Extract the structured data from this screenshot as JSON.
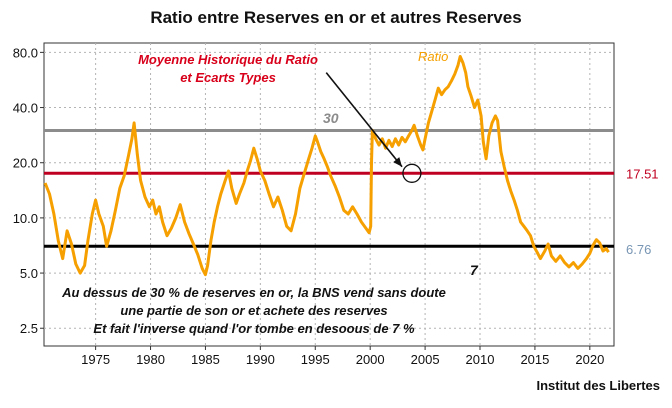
{
  "title": "Ratio entre Reserves en or et autres Reserves",
  "source": "Institut des Libertes",
  "chart_data": {
    "type": "line",
    "scale_y": "log",
    "ylim": [
      2.0,
      90.0
    ],
    "xlim": [
      1970.3,
      2022.2
    ],
    "y_ticks": [
      {
        "value": 2.5,
        "label": "2.5"
      },
      {
        "value": 5,
        "label": "5.0"
      },
      {
        "value": 10,
        "label": "10.0"
      },
      {
        "value": 20,
        "label": "20.0"
      },
      {
        "value": 40,
        "label": "40.0"
      },
      {
        "value": 80,
        "label": "80.0"
      }
    ],
    "x_ticks": [
      1975,
      1980,
      1985,
      1990,
      1995,
      2000,
      2005,
      2010,
      2015,
      2020
    ],
    "grid": true,
    "series": [
      {
        "name": "Ratio",
        "color": "#f5a000",
        "points": [
          [
            1970.4,
            15.5
          ],
          [
            1970.8,
            13.5
          ],
          [
            1971.2,
            10.5
          ],
          [
            1971.6,
            7.5
          ],
          [
            1972.0,
            6.0
          ],
          [
            1972.4,
            8.5
          ],
          [
            1972.8,
            7.2
          ],
          [
            1973.2,
            5.6
          ],
          [
            1973.6,
            5.0
          ],
          [
            1974.0,
            5.5
          ],
          [
            1974.3,
            7.5
          ],
          [
            1974.7,
            10.5
          ],
          [
            1975.0,
            12.5
          ],
          [
            1975.3,
            10.5
          ],
          [
            1975.7,
            9.0
          ],
          [
            1976.0,
            7.0
          ],
          [
            1976.4,
            8.5
          ],
          [
            1976.8,
            11.0
          ],
          [
            1977.2,
            14.5
          ],
          [
            1977.6,
            17.0
          ],
          [
            1978.0,
            22.0
          ],
          [
            1978.3,
            27.0
          ],
          [
            1978.5,
            33.0
          ],
          [
            1978.8,
            22.0
          ],
          [
            1979.1,
            16.0
          ],
          [
            1979.5,
            13.0
          ],
          [
            1979.9,
            11.5
          ],
          [
            1980.2,
            12.5
          ],
          [
            1980.5,
            10.5
          ],
          [
            1980.8,
            11.5
          ],
          [
            1981.1,
            9.5
          ],
          [
            1981.5,
            8.0
          ],
          [
            1981.9,
            8.8
          ],
          [
            1982.3,
            10.0
          ],
          [
            1982.7,
            11.8
          ],
          [
            1983.1,
            9.5
          ],
          [
            1983.5,
            8.2
          ],
          [
            1983.9,
            7.2
          ],
          [
            1984.3,
            6.3
          ],
          [
            1984.7,
            5.3
          ],
          [
            1985.0,
            4.9
          ],
          [
            1985.2,
            5.5
          ],
          [
            1985.5,
            7.5
          ],
          [
            1985.8,
            9.5
          ],
          [
            1986.1,
            11.5
          ],
          [
            1986.4,
            13.5
          ],
          [
            1986.8,
            16.0
          ],
          [
            1987.1,
            18.0
          ],
          [
            1987.4,
            14.5
          ],
          [
            1987.8,
            12.0
          ],
          [
            1988.1,
            13.5
          ],
          [
            1988.5,
            15.5
          ],
          [
            1988.8,
            18.0
          ],
          [
            1989.1,
            20.5
          ],
          [
            1989.4,
            24.0
          ],
          [
            1989.7,
            21.0
          ],
          [
            1990.0,
            18.0
          ],
          [
            1990.4,
            16.0
          ],
          [
            1990.8,
            13.5
          ],
          [
            1991.2,
            11.5
          ],
          [
            1991.6,
            13.0
          ],
          [
            1992.0,
            11.0
          ],
          [
            1992.4,
            9.0
          ],
          [
            1992.8,
            8.5
          ],
          [
            1993.2,
            10.5
          ],
          [
            1993.6,
            14.5
          ],
          [
            1994.0,
            17.5
          ],
          [
            1994.4,
            21.0
          ],
          [
            1994.7,
            24.0
          ],
          [
            1995.0,
            28.0
          ],
          [
            1995.2,
            26.0
          ],
          [
            1995.5,
            23.0
          ],
          [
            1995.8,
            21.0
          ],
          [
            1996.1,
            19.0
          ],
          [
            1996.4,
            17.0
          ],
          [
            1996.8,
            15.0
          ],
          [
            1997.2,
            13.0
          ],
          [
            1997.6,
            11.0
          ],
          [
            1998.0,
            10.5
          ],
          [
            1998.4,
            11.5
          ],
          [
            1998.8,
            10.5
          ],
          [
            1999.2,
            9.5
          ],
          [
            1999.6,
            8.8
          ],
          [
            1999.9,
            8.3
          ],
          [
            2000.05,
            9.0
          ],
          [
            2000.12,
            20.0
          ],
          [
            2000.2,
            30.0
          ],
          [
            2000.5,
            27.0
          ],
          [
            2000.8,
            25.0
          ],
          [
            2001.1,
            27.0
          ],
          [
            2001.4,
            24.0
          ],
          [
            2001.7,
            26.5
          ],
          [
            2002.0,
            24.5
          ],
          [
            2002.3,
            27.0
          ],
          [
            2002.6,
            25.0
          ],
          [
            2002.9,
            27.5
          ],
          [
            2003.2,
            26.0
          ],
          [
            2003.5,
            28.0
          ],
          [
            2003.8,
            30.0
          ],
          [
            2004.0,
            32.0
          ],
          [
            2004.3,
            28.0
          ],
          [
            2004.6,
            25.0
          ],
          [
            2004.8,
            23.5
          ],
          [
            2005.0,
            27.0
          ],
          [
            2005.3,
            33.0
          ],
          [
            2005.6,
            38.0
          ],
          [
            2005.9,
            44.0
          ],
          [
            2006.2,
            51.0
          ],
          [
            2006.5,
            47.0
          ],
          [
            2006.8,
            50.0
          ],
          [
            2007.1,
            52.0
          ],
          [
            2007.4,
            56.0
          ],
          [
            2007.7,
            61.0
          ],
          [
            2008.0,
            68.0
          ],
          [
            2008.2,
            76.0
          ],
          [
            2008.45,
            70.0
          ],
          [
            2008.7,
            62.0
          ],
          [
            2008.9,
            52.0
          ],
          [
            2009.2,
            46.0
          ],
          [
            2009.5,
            40.0
          ],
          [
            2009.8,
            44.0
          ],
          [
            2010.1,
            36.0
          ],
          [
            2010.3,
            26.0
          ],
          [
            2010.55,
            21.0
          ],
          [
            2010.8,
            28.0
          ],
          [
            2011.1,
            33.0
          ],
          [
            2011.4,
            36.0
          ],
          [
            2011.6,
            34.0
          ],
          [
            2011.9,
            23.0
          ],
          [
            2012.2,
            19.0
          ],
          [
            2012.5,
            16.0
          ],
          [
            2012.8,
            14.0
          ],
          [
            2013.1,
            12.5
          ],
          [
            2013.4,
            11.0
          ],
          [
            2013.7,
            9.5
          ],
          [
            2014.0,
            9.0
          ],
          [
            2014.3,
            8.5
          ],
          [
            2014.6,
            8.0
          ],
          [
            2014.9,
            7.0
          ],
          [
            2015.2,
            6.5
          ],
          [
            2015.5,
            6.0
          ],
          [
            2015.9,
            6.6
          ],
          [
            2016.2,
            7.2
          ],
          [
            2016.5,
            6.2
          ],
          [
            2016.9,
            5.8
          ],
          [
            2017.3,
            6.2
          ],
          [
            2017.7,
            5.7
          ],
          [
            2018.1,
            5.4
          ],
          [
            2018.5,
            5.7
          ],
          [
            2018.9,
            5.3
          ],
          [
            2019.3,
            5.6
          ],
          [
            2019.7,
            6.0
          ],
          [
            2020.0,
            6.4
          ],
          [
            2020.3,
            7.1
          ],
          [
            2020.6,
            7.6
          ],
          [
            2020.9,
            7.3
          ],
          [
            2021.2,
            6.6
          ],
          [
            2021.5,
            6.8
          ],
          [
            2021.7,
            6.5
          ]
        ]
      }
    ],
    "reference_lines": [
      {
        "value": 30,
        "label": "30",
        "color": "#8c8c8c"
      },
      {
        "value": 17.51,
        "label": "17.51",
        "color": "#c00020"
      },
      {
        "value": 7,
        "label": "7",
        "color": "#000000"
      }
    ],
    "right_labels": [
      {
        "value": 17.51,
        "label": "17.51",
        "color": "#c00020"
      },
      {
        "value": 6.76,
        "label": "6.76",
        "color": "#7896b4"
      }
    ],
    "annotations": {
      "series_label": "Ratio",
      "red_note_line1": "Moyenne Historique du Ratio",
      "red_note_line2": "et Ecarts Types",
      "note_line1": "Au dessus de 30 % de reserves en or, la BNS vend sans doute",
      "note_line2": "une partie de son or  et achete des reserves",
      "note_line3": "Et fait l'inverse quand l'or tombe en desoous de 7 %",
      "circle_point": [
        2003.8,
        17.51
      ],
      "arrow_from": [
        1996.0,
        62.0
      ],
      "arrow_to": [
        2002.9,
        19.0
      ]
    }
  }
}
